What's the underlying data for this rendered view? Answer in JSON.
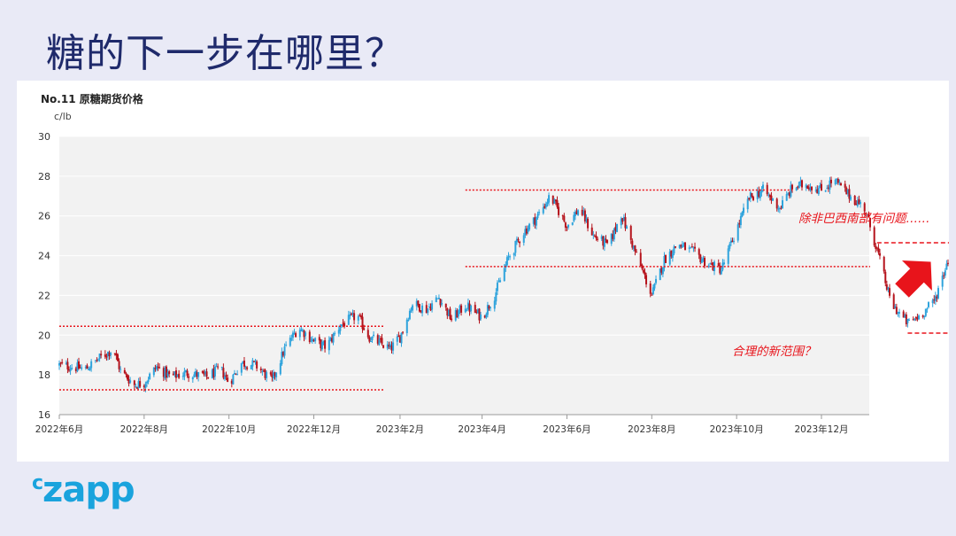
{
  "slide": {
    "title": "糖的下一步在哪里？",
    "logo_mark": "c",
    "logo_word": "zapp"
  },
  "colors": {
    "up": "#2ea3dc",
    "down": "#b5121b",
    "annotation": "#e8141b",
    "plot_bg": "#f2f2f2",
    "grid": "#ffffff"
  },
  "chart_data": {
    "type": "candlestick",
    "title": "No.11 原糖期货价格",
    "ylabel": "c/lb",
    "ylim": [
      16,
      30
    ],
    "yticks": [
      16,
      18,
      20,
      22,
      24,
      26,
      28,
      30
    ],
    "grid": "horizontal",
    "x_tick_labels": [
      "2022年6月",
      "2022年8月",
      "2022年10月",
      "2022年12月",
      "2023年2月",
      "2023年4月",
      "2023年6月",
      "2023年8月",
      "2023年10月",
      "2023年12月"
    ],
    "x_ticks_date": [
      "2022-06",
      "2022-08",
      "2022-10",
      "2022-12",
      "2023-02",
      "2023-04",
      "2023-06",
      "2023-08",
      "2023-10",
      "2023-12"
    ],
    "close_path": [
      [
        "2022-06",
        18.5
      ],
      [
        "2022-06-20",
        18.3
      ],
      [
        "2022-07",
        18.9
      ],
      [
        "2022-07-10",
        19.3
      ],
      [
        "2022-07-15",
        18.2
      ],
      [
        "2022-07-25",
        17.5
      ],
      [
        "2022-08",
        17.6
      ],
      [
        "2022-08-10",
        18.4
      ],
      [
        "2022-08-20",
        17.9
      ],
      [
        "2022-09",
        18.1
      ],
      [
        "2022-09-15",
        17.9
      ],
      [
        "2022-09-25",
        18.3
      ],
      [
        "2022-10",
        17.6
      ],
      [
        "2022-10-10",
        18.6
      ],
      [
        "2022-10-20",
        18.5
      ],
      [
        "2022-11",
        17.7
      ],
      [
        "2022-11-10",
        19.3
      ],
      [
        "2022-11-20",
        20.4
      ],
      [
        "2022-12",
        19.7
      ],
      [
        "2022-12-10",
        19.4
      ],
      [
        "2022-12-20",
        20.5
      ],
      [
        "2023-01",
        21.0
      ],
      [
        "2023-01-10",
        19.9
      ],
      [
        "2023-01-25",
        19.3
      ],
      [
        "2023-02",
        19.9
      ],
      [
        "2023-02-10",
        21.6
      ],
      [
        "2023-02-20",
        21.3
      ],
      [
        "2023-03",
        21.9
      ],
      [
        "2023-03-10",
        20.8
      ],
      [
        "2023-03-20",
        21.5
      ],
      [
        "2023-04",
        20.9
      ],
      [
        "2023-04-10",
        22.0
      ],
      [
        "2023-04-20",
        23.9
      ],
      [
        "2023-05",
        25.2
      ],
      [
        "2023-05-10",
        25.9
      ],
      [
        "2023-05-20",
        27.0
      ],
      [
        "2023-06",
        25.5
      ],
      [
        "2023-06-10",
        26.4
      ],
      [
        "2023-06-20",
        25.0
      ],
      [
        "2023-07",
        24.5
      ],
      [
        "2023-07-10",
        26.1
      ],
      [
        "2023-07-20",
        24.2
      ],
      [
        "2023-08",
        22.0
      ],
      [
        "2023-08-10",
        23.8
      ],
      [
        "2023-08-20",
        24.6
      ],
      [
        "2023-09",
        24.1
      ],
      [
        "2023-09-10",
        23.6
      ],
      [
        "2023-09-20",
        23.3
      ],
      [
        "2023-10",
        25.3
      ],
      [
        "2023-10-10",
        26.9
      ],
      [
        "2023-10-20",
        27.3
      ],
      [
        "2023-11",
        26.4
      ],
      [
        "2023-11-10",
        27.4
      ],
      [
        "2023-11-20",
        27.6
      ],
      [
        "2023-12",
        27.3
      ],
      [
        "2023-12-10",
        27.8
      ],
      [
        "2023-12-20",
        27.1
      ],
      [
        "2024-01",
        26.4
      ],
      [
        "2024-01-10",
        24.3
      ],
      [
        "2024-01-20",
        21.6
      ],
      [
        "2024-02",
        20.6
      ],
      [
        "2024-02-10",
        21.0
      ],
      [
        "2024-02-20",
        21.7
      ],
      [
        "2024-03",
        23.8
      ],
      [
        "2024-03-05",
        24.2
      ]
    ],
    "reference_lines": [
      {
        "y": 20.45,
        "x_from": "2022-06",
        "x_to": "2023-01-20",
        "style": "dotted"
      },
      {
        "y": 17.25,
        "x_from": "2022-06",
        "x_to": "2023-01-20",
        "style": "dotted"
      },
      {
        "y": 27.3,
        "x_from": "2023-03-20",
        "x_to": "2023-11-10",
        "style": "dotted"
      },
      {
        "y": 23.45,
        "x_from": "2023-03-20",
        "x_to": "2024-01-05",
        "style": "dotted"
      },
      {
        "y": 24.65,
        "x_from": "2024-01-10",
        "x_to": "2024-03-05",
        "style": "dashed"
      },
      {
        "y": 20.1,
        "x_from": "2024-02-01",
        "x_to": "2024-03-05",
        "style": "dashed"
      }
    ],
    "annotations": [
      {
        "text": "除非巴西南部有问题……",
        "y": 25.9
      },
      {
        "text": "合理的新范围？",
        "y": 19.2
      }
    ]
  }
}
